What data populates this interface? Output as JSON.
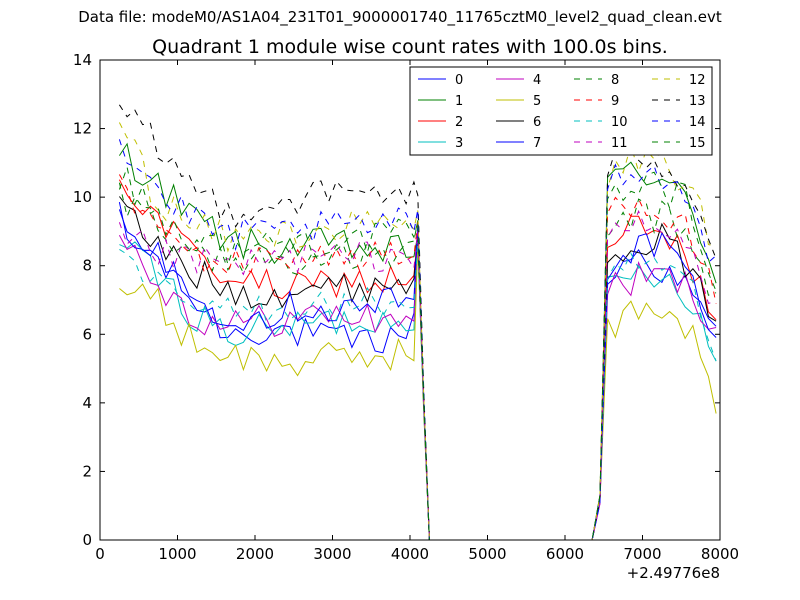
{
  "suptitle": "Data file: modeM0/AS1A04_231T01_9000001740_11765cztM0_level2_quad_clean.evt",
  "chart_data": {
    "type": "line",
    "title": "Quadrant 1 module wise count rates with 100.0s bins.",
    "xlabel": "",
    "ylabel": "",
    "x_offset_label": "+2.49776e8",
    "xlim": [
      0,
      8000
    ],
    "ylim": [
      0,
      14
    ],
    "xticks": [
      0,
      1000,
      2000,
      3000,
      4000,
      5000,
      6000,
      7000,
      8000
    ],
    "yticks": [
      0,
      2,
      4,
      6,
      8,
      10,
      12,
      14
    ],
    "legend_position": "top-right",
    "legend_columns": 4,
    "x": [
      250,
      4150,
      4250,
      6350,
      6450,
      6550,
      7950
    ],
    "gap_level": 0,
    "series": [
      {
        "name": "0",
        "color": "#0000ff",
        "dash": "solid",
        "seg1": [
          9.2,
          8.2,
          7.0,
          6.0,
          6.2,
          6.0,
          5.8,
          5.8,
          6.2
        ],
        "end1": 9.0,
        "seg2": [
          7.6,
          8.4,
          7.9,
          7.2,
          6.0
        ]
      },
      {
        "name": "1",
        "color": "#008000",
        "dash": "solid",
        "seg1": [
          11.4,
          10.4,
          9.4,
          8.7,
          8.5,
          8.6,
          8.6,
          8.4,
          8.4
        ],
        "end1": 9.0,
        "seg2": [
          10.2,
          11.0,
          10.4,
          9.8,
          7.8
        ]
      },
      {
        "name": "2",
        "color": "#ff0000",
        "dash": "solid",
        "seg1": [
          10.5,
          9.4,
          8.3,
          7.7,
          7.4,
          7.3,
          7.6,
          7.5,
          7.7
        ],
        "end1": 8.8,
        "seg2": [
          8.3,
          9.2,
          8.8,
          8.2,
          6.5
        ]
      },
      {
        "name": "3",
        "color": "#00bfbf",
        "dash": "solid",
        "seg1": [
          8.6,
          7.8,
          6.6,
          6.0,
          6.1,
          6.3,
          6.4,
          6.4,
          6.6
        ],
        "end1": 8.8,
        "seg2": [
          7.2,
          7.8,
          7.8,
          7.2,
          5.2
        ]
      },
      {
        "name": "4",
        "color": "#bf00bf",
        "dash": "solid",
        "seg1": [
          9.0,
          7.6,
          6.5,
          6.3,
          6.4,
          6.5,
          6.6,
          6.4,
          6.6
        ],
        "end1": 8.9,
        "seg2": [
          7.3,
          7.6,
          7.7,
          7.4,
          6.2
        ]
      },
      {
        "name": "5",
        "color": "#bfbf00",
        "dash": "solid",
        "seg1": [
          7.4,
          6.9,
          5.8,
          5.4,
          5.2,
          5.2,
          5.3,
          5.4,
          5.5
        ],
        "end1": 8.5,
        "seg2": [
          6.0,
          6.8,
          6.8,
          6.2,
          4.0
        ]
      },
      {
        "name": "6",
        "color": "#000000",
        "dash": "solid",
        "seg1": [
          9.7,
          8.6,
          7.8,
          7.3,
          7.2,
          7.4,
          7.3,
          7.5,
          7.5
        ],
        "end1": 9.0,
        "seg2": [
          8.4,
          8.8,
          8.8,
          8.0,
          6.0
        ]
      },
      {
        "name": "7",
        "color": "#0000ff",
        "dash": "solid",
        "seg1": [
          9.4,
          8.3,
          7.1,
          6.6,
          6.6,
          6.9,
          6.7,
          6.9,
          7.0
        ],
        "end1": 9.1,
        "seg2": [
          8.0,
          8.6,
          8.6,
          7.8,
          5.6
        ]
      },
      {
        "name": "8",
        "color": "#008000",
        "dash": "dashed",
        "seg1": [
          10.1,
          9.3,
          8.4,
          8.1,
          8.2,
          8.2,
          8.1,
          8.4,
          8.3
        ],
        "end1": 9.2,
        "seg2": [
          9.0,
          9.5,
          9.4,
          8.9,
          7.0
        ]
      },
      {
        "name": "9",
        "color": "#ff0000",
        "dash": "dashed",
        "seg1": [
          10.3,
          9.1,
          8.3,
          8.0,
          8.2,
          8.4,
          8.2,
          8.3,
          8.1
        ],
        "end1": 9.3,
        "seg2": [
          9.6,
          10.0,
          9.6,
          9.0,
          7.2
        ]
      },
      {
        "name": "10",
        "color": "#00bfbf",
        "dash": "dashed",
        "seg1": [
          8.0,
          7.4,
          6.8,
          6.6,
          6.8,
          6.9,
          6.8,
          6.9,
          7.0
        ],
        "end1": 8.6,
        "seg2": [
          7.4,
          8.0,
          7.9,
          7.4,
          5.0
        ]
      },
      {
        "name": "11",
        "color": "#bf00bf",
        "dash": "dashed",
        "seg1": [
          8.8,
          8.4,
          8.1,
          8.0,
          8.1,
          8.3,
          8.2,
          8.3,
          8.3
        ],
        "end1": 9.0,
        "seg2": [
          8.6,
          9.2,
          9.0,
          8.6,
          6.6
        ]
      },
      {
        "name": "12",
        "color": "#bfbf00",
        "dash": "dashed",
        "seg1": [
          12.3,
          10.0,
          9.1,
          8.8,
          8.9,
          9.0,
          9.1,
          9.2,
          9.1
        ],
        "end1": 9.6,
        "seg2": [
          10.6,
          11.2,
          11.0,
          10.4,
          8.2
        ]
      },
      {
        "name": "13",
        "color": "#000000",
        "dash": "dashed",
        "seg1": [
          12.5,
          11.5,
          10.3,
          9.6,
          9.8,
          10.0,
          10.1,
          10.2,
          10.1
        ],
        "end1": 10.0,
        "seg2": [
          10.8,
          11.4,
          11.0,
          10.5,
          8.4
        ]
      },
      {
        "name": "14",
        "color": "#0000ff",
        "dash": "dashed",
        "seg1": [
          11.6,
          10.2,
          9.3,
          8.9,
          8.9,
          9.1,
          9.1,
          9.2,
          9.2
        ],
        "end1": 9.7,
        "seg2": [
          10.4,
          11.0,
          10.6,
          10.0,
          8.0
        ]
      },
      {
        "name": "15",
        "color": "#008000",
        "dash": "dashed",
        "seg1": [
          10.6,
          9.6,
          8.7,
          8.5,
          8.6,
          8.7,
          8.8,
          8.8,
          8.9
        ],
        "end1": 9.4,
        "seg2": [
          9.8,
          10.6,
          10.3,
          9.8,
          7.6
        ]
      }
    ]
  }
}
